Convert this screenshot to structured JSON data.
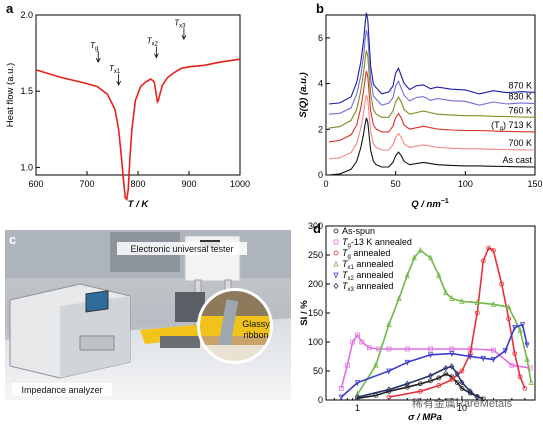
{
  "panels": {
    "a": {
      "label": "a",
      "chart_data": {
        "type": "line",
        "xlabel": "T / K",
        "ylabel": "Heat flow (a.u.)",
        "xlim": [
          600,
          1000
        ],
        "ylim": [
          0.95,
          2.0
        ],
        "xticks": [
          600,
          700,
          800,
          900,
          1000
        ],
        "yticks": [
          1.0,
          1.5,
          2.0
        ],
        "annotations": [
          {
            "text": "T",
            "sub": "g",
            "x": 722,
            "y": 1.73
          },
          {
            "text": "T",
            "sub": "x1",
            "x": 762,
            "y": 1.58
          },
          {
            "text": "T",
            "sub": "x2",
            "x": 836,
            "y": 1.76
          },
          {
            "text": "T",
            "sub": "x3",
            "x": 890,
            "y": 1.88
          }
        ],
        "series": [
          {
            "color": "#e8221b",
            "x": [
              600,
              650,
              700,
              720,
              740,
              755,
              762,
              768,
              772,
              775,
              778,
              781,
              784,
              788,
              795,
              805,
              815,
              825,
              832,
              836,
              838,
              840,
              843,
              848,
              858,
              870,
              885,
              900,
              930,
              960,
              1000
            ],
            "y": [
              1.64,
              1.59,
              1.55,
              1.53,
              1.48,
              1.38,
              1.25,
              1.05,
              0.9,
              0.8,
              0.79,
              0.86,
              1.05,
              1.25,
              1.44,
              1.53,
              1.56,
              1.58,
              1.56,
              1.47,
              1.43,
              1.44,
              1.48,
              1.54,
              1.59,
              1.62,
              1.65,
              1.66,
              1.67,
              1.69,
              1.71
            ]
          }
        ]
      }
    },
    "b": {
      "label": "b",
      "chart_data": {
        "type": "line",
        "xlabel": "Q / nm",
        "xlabel_sup": "−1",
        "ylabel": "S(Q) (a.u.)",
        "xlim": [
          0,
          150
        ],
        "ylim": [
          0,
          7
        ],
        "xticks": [
          0,
          50,
          100,
          150
        ],
        "yticks": [
          0,
          2,
          4,
          6
        ],
        "series": [
          {
            "name": "870 K",
            "color": "#1c1c9e",
            "offset": 4.0
          },
          {
            "name": "830 K",
            "color": "#6f6fd6",
            "offset": 3.55
          },
          {
            "name": "760 K",
            "color": "#7f8c1f",
            "offset": 3.0
          },
          {
            "name": "(Tg) 713 K",
            "label_prefix": "(T",
            "label_sub": "g",
            "label_suffix": ") 713 K",
            "color": "#d8312b",
            "offset": 2.4
          },
          {
            "name": "700 K",
            "color": "#f08a86",
            "offset": 1.65
          },
          {
            "name": "As cast",
            "color": "#111111",
            "offset": 0.95
          }
        ],
        "base_curve": {
          "x": [
            2,
            10,
            18,
            22,
            25,
            27,
            28,
            29,
            30,
            31,
            32,
            34,
            36,
            40,
            45,
            48,
            50,
            52,
            54,
            56,
            60,
            65,
            70,
            75,
            80,
            90,
            100,
            110,
            120,
            130,
            140,
            150
          ],
          "y": [
            0.0,
            0.05,
            0.25,
            0.6,
            1.2,
            1.8,
            2.2,
            2.5,
            2.3,
            1.7,
            1.1,
            0.6,
            0.45,
            0.35,
            0.35,
            0.55,
            0.85,
            1.0,
            0.85,
            0.6,
            0.45,
            0.5,
            0.55,
            0.5,
            0.45,
            0.42,
            0.4,
            0.4,
            0.38,
            0.37,
            0.36,
            0.35
          ]
        }
      }
    },
    "c": {
      "label": "c",
      "labels": {
        "tester": "Electronic universal tester",
        "ribbon_line1": "Glassy",
        "ribbon_line2": "ribbon",
        "analyzer": "Impedance analyzer"
      }
    },
    "d": {
      "label": "d",
      "watermark": "稀有金属RareMetals",
      "chart_data": {
        "type": "scatter",
        "xlabel": "σ / MPa",
        "ylabel": "SI / %",
        "xscale": "log",
        "xlim": [
          0.5,
          50
        ],
        "ylim": [
          0,
          300
        ],
        "xticks": [
          1,
          10
        ],
        "yticks": [
          0,
          50,
          100,
          150,
          200,
          250,
          300
        ],
        "series": [
          {
            "name": "As-spun",
            "color": "#222222",
            "marker": "circle",
            "x": [
              1,
              1.5,
              2,
              3,
              4,
              5,
              6,
              7,
              8,
              9,
              10,
              12,
              14,
              16
            ],
            "y": [
              3,
              8,
              15,
              22,
              28,
              33,
              38,
              45,
              40,
              30,
              20,
              12,
              6,
              2
            ]
          },
          {
            "name": "Tg-13 K annealed",
            "label_prefix": "T",
            "label_sub": "g",
            "label_suffix": "-13 K annealed",
            "color": "#e070e0",
            "marker": "square",
            "x": [
              0.7,
              0.8,
              0.9,
              1.0,
              1.1,
              1.3,
              1.6,
              2,
              3,
              5,
              8,
              12,
              20,
              30,
              45
            ],
            "y": [
              20,
              60,
              100,
              112,
              100,
              90,
              88,
              88,
              88,
              88,
              88,
              88,
              86,
              60,
              55
            ]
          },
          {
            "name": "Tg annealed",
            "label_prefix": "T",
            "label_sub": "g",
            "label_suffix": " annealed",
            "color": "#e8303a",
            "marker": "circle",
            "x": [
              2,
              4,
              6,
              8,
              10,
              12,
              14,
              16,
              18,
              20,
              24,
              28,
              32,
              36,
              40
            ],
            "y": [
              5,
              15,
              25,
              35,
              50,
              80,
              150,
              240,
              262,
              258,
              200,
              140,
              80,
              40,
              20
            ]
          },
          {
            "name": "Tx1 annealed",
            "label_prefix": "T",
            "label_sub": "x1",
            "label_suffix": " annealed",
            "color": "#72b84a",
            "marker": "triangle",
            "x": [
              1,
              1.5,
              2,
              2.5,
              3,
              3.5,
              4,
              5,
              6,
              7,
              8,
              10,
              14,
              20,
              28,
              36,
              42,
              46
            ],
            "y": [
              10,
              60,
              130,
              175,
              215,
              245,
              258,
              245,
              215,
              185,
              175,
              170,
              168,
              165,
              160,
              120,
              70,
              30
            ]
          },
          {
            "name": "Tx2 annealed",
            "label_prefix": "T",
            "label_sub": "x2",
            "label_suffix": " annealed",
            "color": "#3a3ad0",
            "marker": "triangle-down",
            "x": [
              0.7,
              1,
              2,
              3,
              5,
              8,
              12,
              16,
              20,
              26,
              32,
              38,
              42
            ],
            "y": [
              5,
              30,
              50,
              65,
              78,
              80,
              75,
              72,
              70,
              85,
              125,
              130,
              95
            ]
          },
          {
            "name": "Tx3 annealed",
            "label_prefix": "T",
            "label_sub": "x3",
            "label_suffix": " annealed",
            "color": "#26306a",
            "marker": "diamond",
            "x": [
              1,
              2,
              3,
              5,
              7,
              8,
              9,
              10,
              12,
              14
            ],
            "y": [
              5,
              18,
              28,
              42,
              55,
              58,
              45,
              30,
              15,
              5
            ]
          }
        ]
      }
    }
  }
}
